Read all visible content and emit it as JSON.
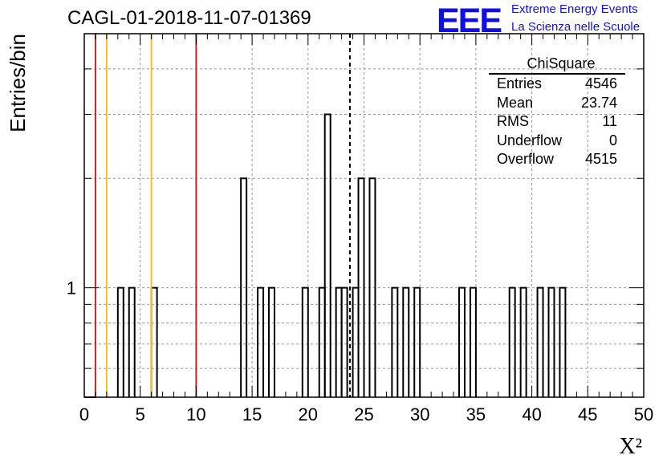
{
  "title": "CAGL-01-2018-11-07-01369",
  "logo": {
    "text": "EEE",
    "line1": "Extreme Energy Events",
    "line2": "La Scienza nelle Scuole",
    "color": "#1010e6"
  },
  "stats": {
    "title": "ChiSquare",
    "rows": [
      {
        "key": "Entries",
        "value": "4546"
      },
      {
        "key": "Mean",
        "value": "23.74"
      },
      {
        "key": "RMS",
        "value": "11"
      },
      {
        "key": "Underflow",
        "value": "0"
      },
      {
        "key": "Overflow",
        "value": "4515"
      }
    ]
  },
  "chart_data": {
    "type": "histogram",
    "xlabel": "X²",
    "ylabel": "Entries/bin",
    "xlim": [
      0,
      50
    ],
    "ylim": [
      0.5,
      5
    ],
    "yscale": "log",
    "bin_width": 0.5,
    "x_ticks": [
      0,
      5,
      10,
      15,
      20,
      25,
      30,
      35,
      40,
      45,
      50
    ],
    "y_tick_labels": [
      "1"
    ],
    "grid": true,
    "bins": [
      {
        "x": 0.0,
        "y": 0.5
      },
      {
        "x": 0.5,
        "y": 0.5
      },
      {
        "x": 3.0,
        "y": 1
      },
      {
        "x": 4.0,
        "y": 1
      },
      {
        "x": 6.0,
        "y": 1
      },
      {
        "x": 14.0,
        "y": 2
      },
      {
        "x": 15.5,
        "y": 1
      },
      {
        "x": 16.5,
        "y": 1
      },
      {
        "x": 19.5,
        "y": 1
      },
      {
        "x": 21.0,
        "y": 1
      },
      {
        "x": 21.5,
        "y": 3
      },
      {
        "x": 22.5,
        "y": 1
      },
      {
        "x": 23.0,
        "y": 1
      },
      {
        "x": 24.0,
        "y": 1
      },
      {
        "x": 24.5,
        "y": 2
      },
      {
        "x": 25.5,
        "y": 2
      },
      {
        "x": 27.5,
        "y": 1
      },
      {
        "x": 28.5,
        "y": 1
      },
      {
        "x": 29.5,
        "y": 1
      },
      {
        "x": 33.5,
        "y": 1
      },
      {
        "x": 34.5,
        "y": 1
      },
      {
        "x": 38.0,
        "y": 1
      },
      {
        "x": 39.0,
        "y": 1
      },
      {
        "x": 40.5,
        "y": 1
      },
      {
        "x": 41.5,
        "y": 1
      },
      {
        "x": 42.5,
        "y": 1
      }
    ],
    "reference_lines": [
      {
        "x": 1.0,
        "color": "#d42020",
        "style": "solid"
      },
      {
        "x": 2.0,
        "color": "#f2c022",
        "style": "solid"
      },
      {
        "x": 6.0,
        "color": "#f2c022",
        "style": "solid"
      },
      {
        "x": 10.0,
        "color": "#d42020",
        "style": "solid"
      },
      {
        "x": 23.74,
        "color": "#000000",
        "style": "dashed"
      }
    ]
  }
}
